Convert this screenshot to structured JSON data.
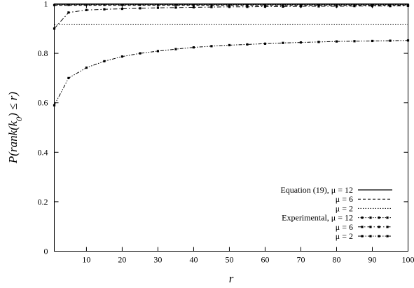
{
  "chart_data": {
    "type": "line",
    "title": "",
    "xlabel": "r",
    "ylabel_parts": [
      "P(rank(k",
      "0",
      ")  ≤ r)"
    ],
    "xlim": [
      1,
      100
    ],
    "ylim": [
      0,
      1
    ],
    "xticks": [
      10,
      20,
      30,
      40,
      50,
      60,
      70,
      80,
      90,
      100
    ],
    "yticks": [
      0,
      0.2,
      0.4,
      0.6,
      0.8,
      1
    ],
    "ytick_labels": [
      "0",
      "0.2",
      "0.4",
      "0.6",
      "0.8",
      "1"
    ],
    "grid": false,
    "legend_position": "bottom-right",
    "series": [
      {
        "name": "Equation (19),   μ = 12",
        "style": "solid",
        "markers": false,
        "x": [
          1,
          100
        ],
        "y": [
          0.998,
          0.998
        ]
      },
      {
        "name": "μ = 6",
        "style": "dashed",
        "markers": false,
        "x": [
          1,
          100
        ],
        "y": [
          0.994,
          0.994
        ]
      },
      {
        "name": "μ = 2",
        "style": "dotted",
        "markers": false,
        "x": [
          1,
          100
        ],
        "y": [
          0.918,
          0.918
        ]
      },
      {
        "name": "Experimental,   μ = 12",
        "style": "dotted-markers",
        "markers": true,
        "x": [
          1,
          5,
          10,
          15,
          20,
          25,
          30,
          35,
          40,
          45,
          50,
          55,
          60,
          65,
          70,
          75,
          80,
          85,
          90,
          95,
          100
        ],
        "y": [
          0.995,
          0.996,
          0.996,
          0.996,
          0.996,
          0.996,
          0.996,
          0.996,
          0.996,
          0.996,
          0.996,
          0.996,
          0.996,
          0.996,
          0.996,
          0.996,
          0.996,
          0.996,
          0.996,
          0.996,
          0.996
        ]
      },
      {
        "name": "μ = 6",
        "style": "dashdot-markers",
        "markers": true,
        "x": [
          1,
          5,
          10,
          15,
          20,
          25,
          30,
          35,
          40,
          45,
          50,
          55,
          60,
          65,
          70,
          75,
          80,
          85,
          90,
          95,
          100
        ],
        "y": [
          0.9,
          0.965,
          0.975,
          0.978,
          0.98,
          0.982,
          0.984,
          0.985,
          0.986,
          0.987,
          0.988,
          0.988,
          0.989,
          0.989,
          0.99,
          0.99,
          0.99,
          0.991,
          0.991,
          0.991,
          0.992
        ]
      },
      {
        "name": "μ = 2",
        "style": "dashdotdot-markers",
        "markers": true,
        "x": [
          1,
          5,
          10,
          15,
          20,
          25,
          30,
          35,
          40,
          45,
          50,
          55,
          60,
          65,
          70,
          75,
          80,
          85,
          90,
          95,
          100
        ],
        "y": [
          0.59,
          0.7,
          0.742,
          0.768,
          0.787,
          0.8,
          0.809,
          0.817,
          0.824,
          0.829,
          0.833,
          0.836,
          0.839,
          0.842,
          0.844,
          0.846,
          0.848,
          0.849,
          0.85,
          0.851,
          0.852
        ]
      }
    ]
  }
}
